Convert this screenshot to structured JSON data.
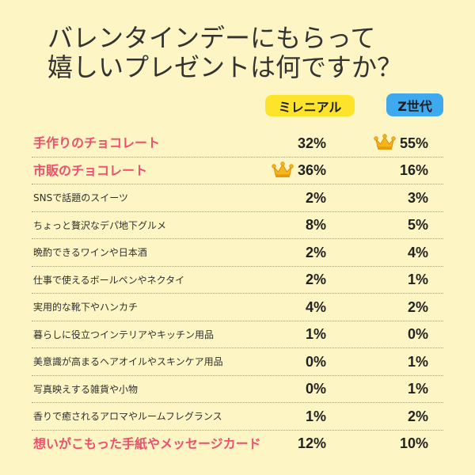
{
  "theme": {
    "background": "#fdf6c4",
    "text": "#333333",
    "accent": "#ef4f6e",
    "millennial_badge": "#fde42b",
    "genz_badge": "#3fa9ef",
    "crown": "#f6b51c"
  },
  "chart_data": {
    "type": "table",
    "title": [
      "バレンタインデーにもらって",
      "嬉しいプレゼントは何ですか？"
    ],
    "columns": [
      "ミレニアル",
      "Z世代"
    ],
    "rows": [
      {
        "label": "手作りのチョコレート",
        "highlight": true,
        "values": [
          {
            "text": "32%"
          },
          {
            "text": "55%",
            "icon": "crown-icon"
          }
        ]
      },
      {
        "label": "市販のチョコレート",
        "highlight": true,
        "values": [
          {
            "text": "36%",
            "icon": "crown-icon"
          },
          {
            "text": "16%"
          }
        ]
      },
      {
        "label": "SNSで話題のスイーツ",
        "highlight": false,
        "values": [
          {
            "text": "2%"
          },
          {
            "text": "3%"
          }
        ]
      },
      {
        "label": "ちょっと贅沢なデパ地下グルメ",
        "highlight": false,
        "values": [
          {
            "text": "8%"
          },
          {
            "text": "5%"
          }
        ]
      },
      {
        "label": "晩酌できるワインや日本酒",
        "highlight": false,
        "values": [
          {
            "text": "2%"
          },
          {
            "text": "4%"
          }
        ]
      },
      {
        "label": "仕事で使えるボールペンやネクタイ",
        "highlight": false,
        "values": [
          {
            "text": "2%"
          },
          {
            "text": "1%"
          }
        ]
      },
      {
        "label": "実用的な靴下やハンカチ",
        "highlight": false,
        "values": [
          {
            "text": "4%"
          },
          {
            "text": "2%"
          }
        ]
      },
      {
        "label": "暮らしに役立つインテリアやキッチン用品",
        "highlight": false,
        "values": [
          {
            "text": "1%"
          },
          {
            "text": "0%"
          }
        ]
      },
      {
        "label": "美意識が高まるヘアオイルやスキンケア用品",
        "highlight": false,
        "values": [
          {
            "text": "0%"
          },
          {
            "text": "1%"
          }
        ]
      },
      {
        "label": "写真映えする雑貨や小物",
        "highlight": false,
        "values": [
          {
            "text": "0%"
          },
          {
            "text": "1%"
          }
        ]
      },
      {
        "label": "香りで癒されるアロマやルームフレグランス",
        "highlight": false,
        "values": [
          {
            "text": "1%"
          },
          {
            "text": "2%"
          }
        ]
      },
      {
        "label": "想いがこもった手紙やメッセージカード",
        "highlight": true,
        "values": [
          {
            "text": "12%"
          },
          {
            "text": "10%"
          }
        ]
      }
    ]
  }
}
